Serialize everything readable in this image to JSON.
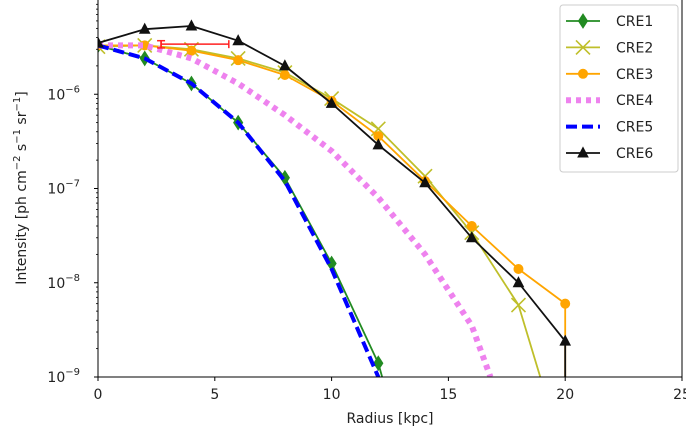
{
  "chart_data": {
    "type": "line",
    "title": "",
    "xlabel": "Radius [kpc]",
    "ylabel_parts": {
      "pre": "Intensity [ph cm",
      "e1": "−2",
      "mid1": " s",
      "e2": "−1",
      "mid2": " sr",
      "e3": "−1",
      "post": "]"
    },
    "xlim": [
      0,
      25
    ],
    "ylim": [
      1e-09,
      1e-05
    ],
    "y_scale": "log",
    "x_ticks": [
      0,
      5,
      10,
      15,
      20,
      25
    ],
    "x_tick_labels": [
      "0",
      "5",
      "10",
      "15",
      "20",
      "25"
    ],
    "y_ticks": [
      1e-09,
      1e-08,
      1e-07,
      1e-06
    ],
    "y_tick_labels": [
      {
        "base": "10",
        "exp": "−9"
      },
      {
        "base": "10",
        "exp": "−8"
      },
      {
        "base": "10",
        "exp": "−7"
      },
      {
        "base": "10",
        "exp": "−6"
      }
    ],
    "grid": false,
    "legend_position": "top-right",
    "series": [
      {
        "name": "CRE1",
        "color": "#228b22",
        "line": "solid",
        "marker": "thin-diamond",
        "x": [
          0,
          2,
          4,
          6,
          8,
          10,
          12,
          12.5
        ],
        "y": [
          3.3e-06,
          2.4e-06,
          1.3e-06,
          5e-07,
          1.3e-07,
          1.6e-08,
          1.4e-09,
          5e-10
        ]
      },
      {
        "name": "CRE2",
        "color": "#bfbf2a",
        "line": "solid",
        "marker": "x",
        "x": [
          0,
          2,
          4,
          6,
          8,
          10,
          12,
          14,
          16,
          18,
          19.3
        ],
        "y": [
          3.2e-06,
          3.3e-06,
          3e-06,
          2.4e-06,
          1.7e-06,
          9e-07,
          4.3e-07,
          1.35e-07,
          3.4e-08,
          5.8e-09,
          5e-10
        ]
      },
      {
        "name": "CRE3",
        "color": "#ffa500",
        "line": "solid",
        "marker": "circle",
        "x": [
          0,
          2,
          4,
          6,
          8,
          10,
          12,
          14,
          16,
          18,
          20,
          20.0
        ],
        "y": [
          3.3e-06,
          3.3e-06,
          2.9e-06,
          2.3e-06,
          1.6e-06,
          8.5e-07,
          3.6e-07,
          1.2e-07,
          4e-08,
          1.4e-08,
          6e-09,
          5e-10
        ]
      },
      {
        "name": "CRE4",
        "color": "#ee82ee",
        "line": "dotted",
        "marker": "none",
        "x": [
          0,
          2,
          4,
          6,
          8,
          10,
          12,
          14,
          16,
          16.8
        ],
        "y": [
          3.3e-06,
          3.3e-06,
          2.4e-06,
          1.3e-06,
          6e-07,
          2.5e-07,
          8e-08,
          2e-08,
          3.5e-09,
          1e-09
        ]
      },
      {
        "name": "CRE5",
        "color": "#0000ff",
        "line": "dashed",
        "marker": "none",
        "x": [
          0,
          2,
          4,
          6,
          8,
          10,
          12,
          12.5
        ],
        "y": [
          3.3e-06,
          2.4e-06,
          1.3e-06,
          5e-07,
          1.2e-07,
          1.4e-08,
          1e-09,
          5e-10
        ]
      },
      {
        "name": "CRE6",
        "color": "#111111",
        "line": "solid",
        "marker": "triangle",
        "x": [
          0,
          2,
          4,
          6,
          8,
          10,
          12,
          14,
          16,
          18,
          20,
          20.0
        ],
        "y": [
          3.5e-06,
          4.9e-06,
          5.3e-06,
          3.7e-06,
          2e-06,
          8e-07,
          2.9e-07,
          1.15e-07,
          3e-08,
          1e-08,
          2.4e-09,
          5e-10
        ]
      }
    ],
    "errorbar": {
      "color": "#ff2020",
      "x": 2.7,
      "y": 3.4e-06,
      "xerr": [
        2.7,
        5.6
      ],
      "yerr": [
        3.1e-06,
        3.7e-06
      ]
    }
  }
}
